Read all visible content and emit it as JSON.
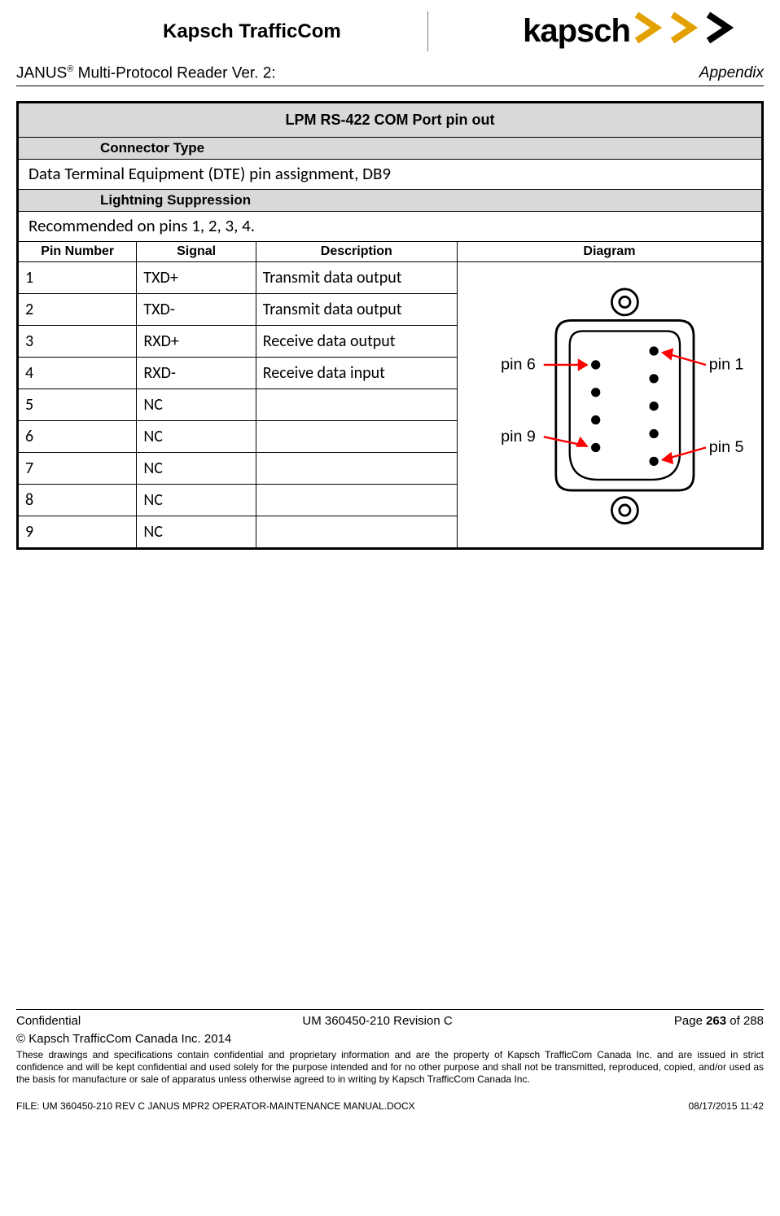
{
  "header": {
    "company": "Kapsch TrafficCom",
    "logo_text": "kapsch",
    "chevron_color": "#e2a100",
    "product_line_prefix": "JANUS",
    "product_line_sup": "®",
    "product_line_suffix": " Multi-Protocol Reader Ver. 2:",
    "section": "Appendix"
  },
  "table": {
    "title": "LPM RS-422 COM Port pin out",
    "connector_label": "Connector Type",
    "connector_value": "Data Terminal Equipment (DTE) pin assignment, DB9",
    "lightning_label": "Lightning Suppression",
    "lightning_value": "Recommended on pins 1, 2, 3, 4.",
    "columns": {
      "pin": "Pin Number",
      "signal": "Signal",
      "desc": "Description",
      "diag": "Diagram"
    },
    "rows": [
      {
        "pin": "1",
        "signal": "TXD+",
        "desc": "Transmit data output"
      },
      {
        "pin": "2",
        "signal": "TXD-",
        "desc": "Transmit data output"
      },
      {
        "pin": "3",
        "signal": "RXD+",
        "desc": "Receive data output"
      },
      {
        "pin": "4",
        "signal": "RXD-",
        "desc": "Receive data input"
      },
      {
        "pin": "5",
        "signal": "NC",
        "desc": ""
      },
      {
        "pin": "6",
        "signal": "NC",
        "desc": ""
      },
      {
        "pin": "7",
        "signal": "NC",
        "desc": ""
      },
      {
        "pin": "8",
        "signal": "NC",
        "desc": ""
      },
      {
        "pin": "9",
        "signal": "NC",
        "desc": ""
      }
    ],
    "col_widths": {
      "pin": "16%",
      "signal": "16%",
      "desc": "27%",
      "diag": "41%"
    },
    "diagram": {
      "labels": {
        "pin1": "pin 1",
        "pin5": "pin 5",
        "pin6": "pin 6",
        "pin9": "pin 9"
      },
      "stroke": "#000000",
      "arrow": "#ff0000"
    }
  },
  "footer": {
    "confidential": "Confidential",
    "doc_id": "UM 360450-210 Revision C",
    "page_prefix": "Page ",
    "page_num": "263",
    "page_suffix": " of 288",
    "copyright": "© Kapsch TrafficCom Canada Inc. 2014",
    "disclaimer": "These drawings and specifications contain confidential and proprietary information and are the property of Kapsch TrafficCom Canada Inc. and are issued in strict confidence and will be kept confidential and used solely for the purpose intended and for no other purpose and shall not be transmitted, reproduced, copied, and/or used as the basis for manufacture or sale of apparatus unless otherwise agreed to in writing by Kapsch TrafficCom Canada Inc.",
    "file": "FILE: UM 360450-210 REV C JANUS MPR2 OPERATOR-MAINTENANCE MANUAL.DOCX",
    "timestamp": "08/17/2015 11:42"
  }
}
